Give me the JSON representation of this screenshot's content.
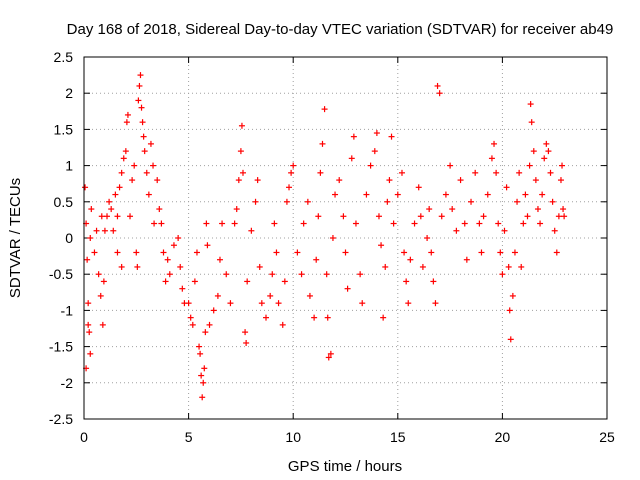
{
  "chart_data": {
    "type": "scatter",
    "title": "Day 168 of 2018, Sidereal Day-to-day VTEC variation (SDTVAR) for receiver ab49",
    "xlabel": "GPS time / hours",
    "ylabel": "SDTVAR / TECUs",
    "xlim": [
      0,
      25
    ],
    "ylim": [
      -2.5,
      2.5
    ],
    "xticks": [
      0,
      5,
      10,
      15,
      20,
      25
    ],
    "yticks": [
      -2.5,
      -2,
      -1.5,
      -1,
      -0.5,
      0,
      0.5,
      1,
      1.5,
      2,
      2.5
    ],
    "xtick_labels": [
      "0",
      "5",
      "10",
      "15",
      "20",
      "25"
    ],
    "ytick_labels": [
      "-2.5",
      "-2",
      "-1.5",
      "-1",
      "-0.5",
      "0",
      "0.5",
      "1",
      "1.5",
      "2",
      "2.5"
    ],
    "grid": true,
    "marker": "+",
    "color": "#ff0000",
    "series": [
      {
        "name": "SDTVAR",
        "points": [
          [
            0.05,
            0.7
          ],
          [
            0.1,
            0.2
          ],
          [
            0.15,
            -0.3
          ],
          [
            0.2,
            -0.9
          ],
          [
            0.25,
            -1.3
          ],
          [
            0.3,
            -1.6
          ],
          [
            0.1,
            -1.8
          ],
          [
            0.2,
            -1.2
          ],
          [
            0.3,
            0.0
          ],
          [
            0.35,
            0.4
          ],
          [
            0.5,
            -0.2
          ],
          [
            0.6,
            0.1
          ],
          [
            0.7,
            -0.5
          ],
          [
            0.8,
            -0.8
          ],
          [
            0.9,
            -1.2
          ],
          [
            0.85,
            0.3
          ],
          [
            0.95,
            -0.6
          ],
          [
            1.0,
            0.1
          ],
          [
            1.1,
            0.3
          ],
          [
            1.2,
            0.5
          ],
          [
            1.3,
            0.4
          ],
          [
            1.4,
            0.1
          ],
          [
            1.5,
            0.6
          ],
          [
            1.6,
            0.3
          ],
          [
            1.7,
            0.7
          ],
          [
            1.8,
            0.9
          ],
          [
            1.9,
            1.1
          ],
          [
            2.0,
            1.2
          ],
          [
            2.1,
            1.7
          ],
          [
            2.05,
            1.6
          ],
          [
            1.6,
            -0.2
          ],
          [
            1.8,
            -0.4
          ],
          [
            2.2,
            0.3
          ],
          [
            2.3,
            0.8
          ],
          [
            2.4,
            1.0
          ],
          [
            2.5,
            -0.2
          ],
          [
            2.55,
            -0.4
          ],
          [
            2.6,
            1.9
          ],
          [
            2.65,
            2.1
          ],
          [
            2.7,
            2.25
          ],
          [
            2.75,
            1.8
          ],
          [
            2.8,
            1.6
          ],
          [
            2.85,
            1.4
          ],
          [
            2.9,
            1.2
          ],
          [
            3.0,
            0.9
          ],
          [
            3.1,
            0.6
          ],
          [
            3.2,
            1.3
          ],
          [
            3.3,
            1.0
          ],
          [
            3.35,
            0.2
          ],
          [
            3.5,
            0.8
          ],
          [
            3.6,
            0.4
          ],
          [
            3.7,
            0.2
          ],
          [
            3.8,
            -0.2
          ],
          [
            3.9,
            -0.6
          ],
          [
            4.0,
            -0.3
          ],
          [
            4.1,
            -0.5
          ],
          [
            4.3,
            -0.1
          ],
          [
            4.5,
            0.0
          ],
          [
            4.6,
            -0.4
          ],
          [
            4.7,
            -0.7
          ],
          [
            4.8,
            -0.9
          ],
          [
            5.0,
            -0.9
          ],
          [
            5.1,
            -1.1
          ],
          [
            5.2,
            -1.2
          ],
          [
            5.3,
            -0.6
          ],
          [
            5.4,
            -0.2
          ],
          [
            5.5,
            -1.5
          ],
          [
            5.55,
            -1.6
          ],
          [
            5.6,
            -1.9
          ],
          [
            5.65,
            -2.2
          ],
          [
            5.7,
            -2.0
          ],
          [
            5.75,
            -1.8
          ],
          [
            5.8,
            -1.3
          ],
          [
            5.85,
            0.2
          ],
          [
            5.9,
            -0.1
          ],
          [
            6.0,
            -1.2
          ],
          [
            6.2,
            -1.0
          ],
          [
            6.4,
            -0.8
          ],
          [
            6.5,
            -0.3
          ],
          [
            6.6,
            0.2
          ],
          [
            6.8,
            -0.5
          ],
          [
            7.0,
            -0.9
          ],
          [
            7.2,
            0.2
          ],
          [
            7.3,
            0.4
          ],
          [
            7.4,
            0.8
          ],
          [
            7.5,
            1.2
          ],
          [
            7.55,
            1.55
          ],
          [
            7.6,
            0.9
          ],
          [
            7.7,
            -1.3
          ],
          [
            7.75,
            -1.45
          ],
          [
            7.8,
            -0.6
          ],
          [
            8.0,
            0.1
          ],
          [
            8.2,
            0.5
          ],
          [
            8.3,
            0.8
          ],
          [
            8.4,
            -0.4
          ],
          [
            8.5,
            -0.9
          ],
          [
            8.7,
            -1.1
          ],
          [
            8.9,
            -0.8
          ],
          [
            9.0,
            -0.5
          ],
          [
            9.1,
            0.2
          ],
          [
            9.2,
            -0.2
          ],
          [
            9.3,
            -0.9
          ],
          [
            9.5,
            -1.2
          ],
          [
            9.6,
            -0.6
          ],
          [
            9.7,
            0.5
          ],
          [
            9.8,
            0.7
          ],
          [
            9.9,
            0.9
          ],
          [
            10.0,
            1.0
          ],
          [
            10.2,
            -0.2
          ],
          [
            10.4,
            -0.5
          ],
          [
            10.5,
            0.2
          ],
          [
            10.7,
            0.5
          ],
          [
            10.8,
            -0.8
          ],
          [
            11.0,
            -1.1
          ],
          [
            11.1,
            -0.3
          ],
          [
            11.2,
            0.3
          ],
          [
            11.3,
            0.9
          ],
          [
            11.4,
            1.3
          ],
          [
            11.5,
            1.78
          ],
          [
            11.6,
            -0.5
          ],
          [
            11.65,
            -1.1
          ],
          [
            11.7,
            -1.65
          ],
          [
            11.8,
            -1.6
          ],
          [
            11.9,
            0.0
          ],
          [
            12.0,
            0.6
          ],
          [
            12.2,
            0.8
          ],
          [
            12.4,
            0.3
          ],
          [
            12.5,
            -0.2
          ],
          [
            12.6,
            -0.7
          ],
          [
            12.8,
            1.1
          ],
          [
            12.9,
            1.4
          ],
          [
            13.0,
            0.2
          ],
          [
            13.2,
            -0.5
          ],
          [
            13.3,
            -0.9
          ],
          [
            13.5,
            0.6
          ],
          [
            13.7,
            1.0
          ],
          [
            13.9,
            1.2
          ],
          [
            14.0,
            1.45
          ],
          [
            14.1,
            0.3
          ],
          [
            14.2,
            -0.1
          ],
          [
            14.3,
            -1.1
          ],
          [
            14.4,
            -0.4
          ],
          [
            14.5,
            0.5
          ],
          [
            14.6,
            0.8
          ],
          [
            14.7,
            1.4
          ],
          [
            14.8,
            0.2
          ],
          [
            15.0,
            0.6
          ],
          [
            15.2,
            0.9
          ],
          [
            15.3,
            -0.2
          ],
          [
            15.4,
            -0.6
          ],
          [
            15.5,
            -0.9
          ],
          [
            15.6,
            -0.3
          ],
          [
            15.8,
            0.2
          ],
          [
            16.0,
            0.7
          ],
          [
            16.1,
            0.3
          ],
          [
            16.2,
            -0.4
          ],
          [
            16.4,
            0.0
          ],
          [
            16.5,
            0.4
          ],
          [
            16.6,
            -0.2
          ],
          [
            16.7,
            -0.6
          ],
          [
            16.8,
            -0.9
          ],
          [
            16.9,
            2.1
          ],
          [
            17.0,
            2.0
          ],
          [
            17.1,
            0.3
          ],
          [
            17.3,
            0.6
          ],
          [
            17.5,
            1.0
          ],
          [
            17.6,
            0.4
          ],
          [
            17.8,
            0.1
          ],
          [
            18.0,
            0.8
          ],
          [
            18.2,
            0.2
          ],
          [
            18.3,
            -0.3
          ],
          [
            18.5,
            0.5
          ],
          [
            18.7,
            0.9
          ],
          [
            18.9,
            0.2
          ],
          [
            19.0,
            -0.2
          ],
          [
            19.1,
            0.3
          ],
          [
            19.3,
            0.6
          ],
          [
            19.5,
            1.1
          ],
          [
            19.6,
            1.3
          ],
          [
            19.7,
            0.9
          ],
          [
            19.8,
            0.2
          ],
          [
            19.9,
            -0.2
          ],
          [
            20.0,
            -0.5
          ],
          [
            20.1,
            0.1
          ],
          [
            20.2,
            0.7
          ],
          [
            20.3,
            -0.4
          ],
          [
            20.35,
            -1.0
          ],
          [
            20.4,
            -1.4
          ],
          [
            20.5,
            -0.8
          ],
          [
            20.6,
            -0.2
          ],
          [
            20.7,
            0.5
          ],
          [
            20.8,
            0.9
          ],
          [
            20.9,
            -0.4
          ],
          [
            21.0,
            0.2
          ],
          [
            21.1,
            0.6
          ],
          [
            21.2,
            0.3
          ],
          [
            21.3,
            1.0
          ],
          [
            21.35,
            1.85
          ],
          [
            21.4,
            1.6
          ],
          [
            21.5,
            1.2
          ],
          [
            21.6,
            0.8
          ],
          [
            21.7,
            0.4
          ],
          [
            21.8,
            0.2
          ],
          [
            21.9,
            0.6
          ],
          [
            22.0,
            1.1
          ],
          [
            22.1,
            1.3
          ],
          [
            22.2,
            1.2
          ],
          [
            22.3,
            0.9
          ],
          [
            22.4,
            0.5
          ],
          [
            22.5,
            0.1
          ],
          [
            22.6,
            -0.2
          ],
          [
            22.7,
            0.3
          ],
          [
            22.8,
            0.8
          ],
          [
            22.85,
            1.0
          ],
          [
            22.9,
            0.4
          ],
          [
            22.95,
            0.3
          ]
        ]
      }
    ]
  }
}
